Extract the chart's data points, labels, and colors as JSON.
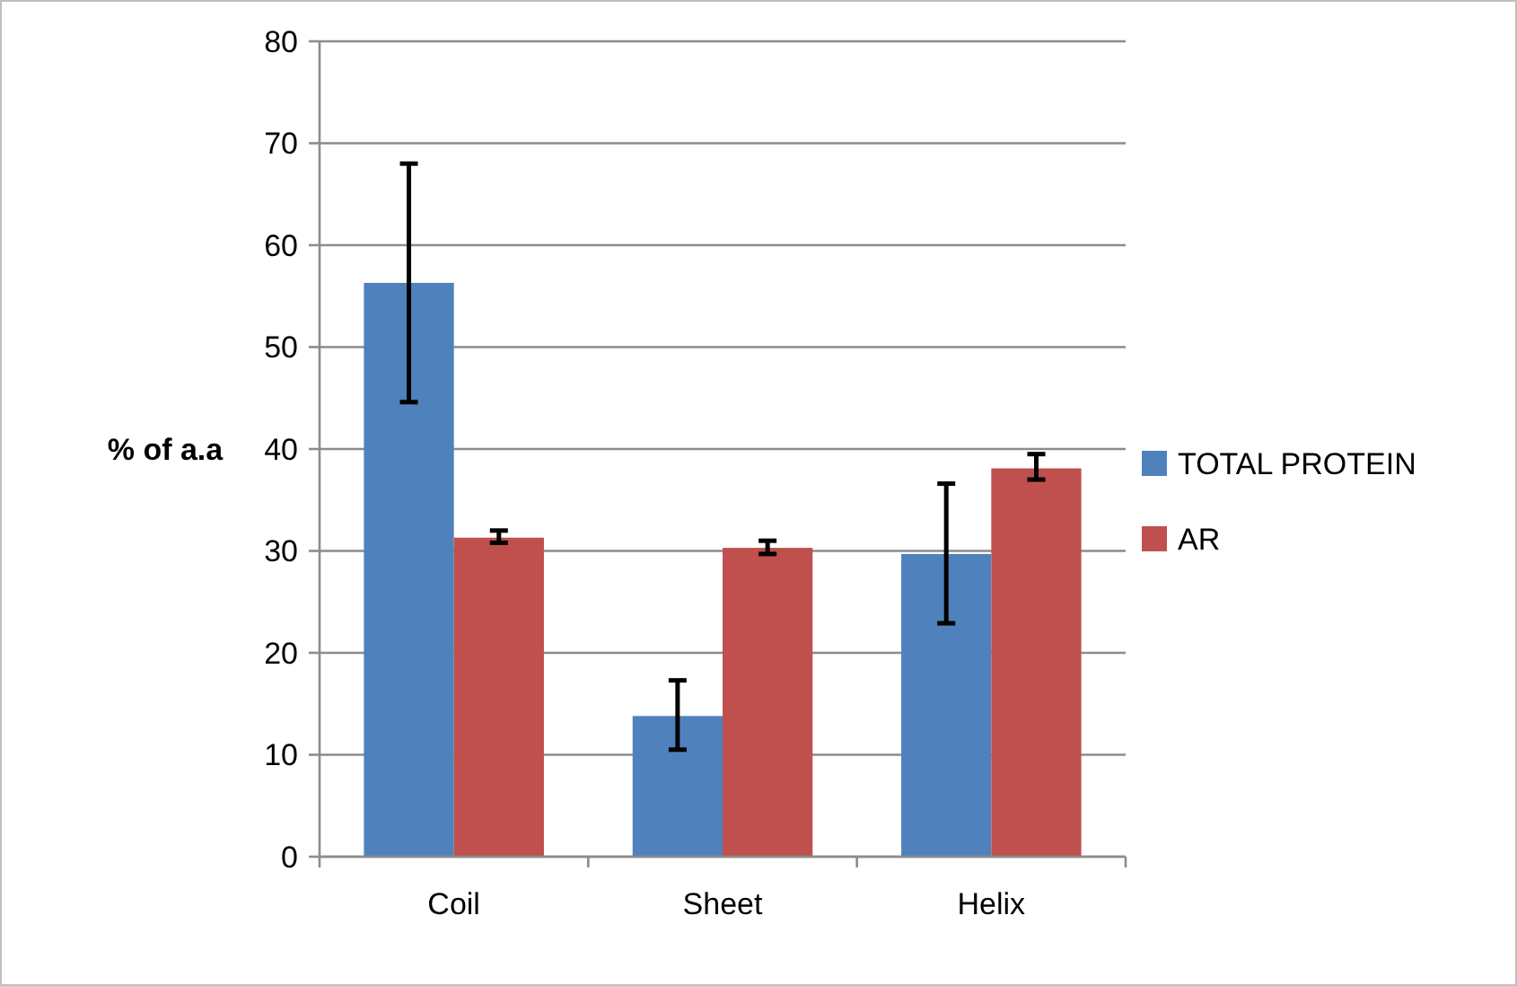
{
  "chart_data": {
    "type": "bar",
    "ylabel": "% of a.a",
    "categories": [
      "Coil",
      "Sheet",
      "Helix"
    ],
    "series": [
      {
        "name": "TOTAL PROTEIN",
        "color": "#4f81bd",
        "values": [
          56.3,
          13.8,
          29.7
        ],
        "errors": [
          [
            44.6,
            68.0
          ],
          [
            10.5,
            17.3
          ],
          [
            22.9,
            36.6
          ]
        ]
      },
      {
        "name": "AR",
        "color": "#c0504d",
        "values": [
          31.3,
          30.3,
          38.1
        ],
        "errors": [
          [
            30.8,
            32.0
          ],
          [
            29.7,
            31.0
          ],
          [
            37.0,
            39.5
          ]
        ]
      }
    ],
    "ylim": [
      0,
      80
    ],
    "yticks": [
      0,
      10,
      20,
      30,
      40,
      50,
      60,
      70,
      80
    ],
    "grid": "y",
    "legend": "right"
  }
}
